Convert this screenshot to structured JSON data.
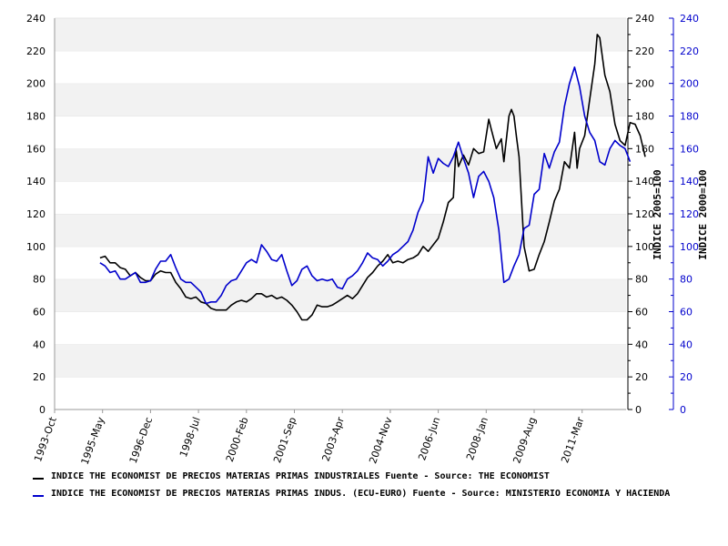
{
  "chart_data": {
    "type": "line",
    "x_labels": [
      "1993-Oct",
      "1995-May",
      "1996-Dec",
      "1998-Jul",
      "2000-Feb",
      "2001-Sep",
      "2003-Apr",
      "2004-Nov",
      "2006-Jun",
      "2008-Jan",
      "2009-Aug",
      "2011-Mar"
    ],
    "ylim": [
      0,
      240
    ],
    "y_ticks": [
      0,
      20,
      40,
      60,
      80,
      100,
      120,
      140,
      160,
      180,
      200,
      220,
      240
    ],
    "ylabel_right_1": "INDICE 2005=100",
    "ylabel_right_2": "INDICE 2000=100",
    "grid": "horizontal bands",
    "legend_position": "bottom",
    "series": [
      {
        "name": "INDICE THE ECONOMIST DE PRECIOS MATERIAS PRIMAS INDUSTRIALES  Fuente - Source: THE ECONOMIST",
        "color": "#000000",
        "points": [
          [
            "1995-Apr",
            93
          ],
          [
            "1995-Jun",
            94
          ],
          [
            "1995-Aug",
            90
          ],
          [
            "1995-Oct",
            90
          ],
          [
            "1995-Dec",
            87
          ],
          [
            "1996-Feb",
            86
          ],
          [
            "1996-Apr",
            82
          ],
          [
            "1996-Jun",
            84
          ],
          [
            "1996-Aug",
            81
          ],
          [
            "1996-Oct",
            79
          ],
          [
            "1996-Dec",
            79
          ],
          [
            "1997-Feb",
            83
          ],
          [
            "1997-Apr",
            85
          ],
          [
            "1997-Jun",
            84
          ],
          [
            "1997-Aug",
            84
          ],
          [
            "1997-Oct",
            78
          ],
          [
            "1997-Dec",
            74
          ],
          [
            "1998-Feb",
            69
          ],
          [
            "1998-Apr",
            68
          ],
          [
            "1998-Jun",
            69
          ],
          [
            "1998-Aug",
            66
          ],
          [
            "1998-Oct",
            65
          ],
          [
            "1998-Dec",
            62
          ],
          [
            "1999-Feb",
            61
          ],
          [
            "1999-Apr",
            61
          ],
          [
            "1999-Jun",
            61
          ],
          [
            "1999-Aug",
            64
          ],
          [
            "1999-Oct",
            66
          ],
          [
            "1999-Dec",
            67
          ],
          [
            "2000-Feb",
            66
          ],
          [
            "2000-Apr",
            68
          ],
          [
            "2000-Jun",
            71
          ],
          [
            "2000-Aug",
            71
          ],
          [
            "2000-Oct",
            69
          ],
          [
            "2000-Dec",
            70
          ],
          [
            "2001-Feb",
            68
          ],
          [
            "2001-Apr",
            69
          ],
          [
            "2001-Jun",
            67
          ],
          [
            "2001-Aug",
            64
          ],
          [
            "2001-Oct",
            60
          ],
          [
            "2001-Dec",
            55
          ],
          [
            "2002-Feb",
            55
          ],
          [
            "2002-Apr",
            58
          ],
          [
            "2002-Jun",
            64
          ],
          [
            "2002-Aug",
            63
          ],
          [
            "2002-Oct",
            63
          ],
          [
            "2002-Dec",
            64
          ],
          [
            "2003-Feb",
            66
          ],
          [
            "2003-Apr",
            68
          ],
          [
            "2003-Jun",
            70
          ],
          [
            "2003-Aug",
            68
          ],
          [
            "2003-Oct",
            71
          ],
          [
            "2003-Dec",
            76
          ],
          [
            "2004-Feb",
            81
          ],
          [
            "2004-Apr",
            84
          ],
          [
            "2004-Jun",
            88
          ],
          [
            "2004-Aug",
            91
          ],
          [
            "2004-Oct",
            95
          ],
          [
            "2004-Dec",
            90
          ],
          [
            "2005-Feb",
            91
          ],
          [
            "2005-Apr",
            90
          ],
          [
            "2005-Jun",
            92
          ],
          [
            "2005-Aug",
            93
          ],
          [
            "2005-Oct",
            95
          ],
          [
            "2005-Dec",
            100
          ],
          [
            "2006-Feb",
            97
          ],
          [
            "2006-Apr",
            101
          ],
          [
            "2006-Jun",
            105
          ],
          [
            "2006-Aug",
            115
          ],
          [
            "2006-Oct",
            127
          ],
          [
            "2006-Dec",
            130
          ],
          [
            "2007-Jan",
            160
          ],
          [
            "2007-Feb",
            149
          ],
          [
            "2007-Apr",
            156
          ],
          [
            "2007-Jun",
            150
          ],
          [
            "2007-Aug",
            160
          ],
          [
            "2007-Oct",
            157
          ],
          [
            "2007-Dec",
            158
          ],
          [
            "2008-Feb",
            178
          ],
          [
            "2008-Mar",
            172
          ],
          [
            "2008-May",
            160
          ],
          [
            "2008-Jul",
            166
          ],
          [
            "2008-Aug",
            152
          ],
          [
            "2008-Oct",
            180
          ],
          [
            "2008-Nov",
            184
          ],
          [
            "2008-Dec",
            180
          ],
          [
            "2009-Jan",
            167
          ],
          [
            "2009-Feb",
            155
          ],
          [
            "2009-Mar",
            128
          ],
          [
            "2009-Apr",
            100
          ],
          [
            "2009-Jun",
            85
          ],
          [
            "2009-Aug",
            86
          ],
          [
            "2009-Oct",
            95
          ],
          [
            "2009-Dec",
            103
          ],
          [
            "2010-Feb",
            115
          ],
          [
            "2010-Apr",
            128
          ],
          [
            "2010-Jun",
            135
          ],
          [
            "2010-Aug",
            152
          ],
          [
            "2010-Oct",
            148
          ],
          [
            "2010-Dec",
            170
          ],
          [
            "2011-Jan",
            148
          ],
          [
            "2011-Feb",
            160
          ],
          [
            "2011-Apr",
            168
          ],
          [
            "2011-Jun",
            190
          ],
          [
            "2011-Aug",
            212
          ],
          [
            "2011-Sep",
            230
          ],
          [
            "2011-Oct",
            228
          ],
          [
            "2011-Dec",
            205
          ],
          [
            "2012-Feb",
            195
          ],
          [
            "2012-Apr",
            175
          ],
          [
            "2012-Jun",
            165
          ],
          [
            "2012-Aug",
            162
          ],
          [
            "2012-Oct",
            176
          ],
          [
            "2012-Dec",
            175
          ],
          [
            "2013-Feb",
            168
          ],
          [
            "2013-Apr",
            155
          ]
        ]
      },
      {
        "name": "INDICE THE ECONOMIST DE PRECIOS MATERIAS PRIMAS INDUS. (ECU-EURO)  Fuente - Source: MINISTERIO ECONOMIA Y HACIENDA",
        "color": "#0000cc",
        "points": [
          [
            "1995-Apr",
            90
          ],
          [
            "1995-Jun",
            88
          ],
          [
            "1995-Aug",
            84
          ],
          [
            "1995-Oct",
            85
          ],
          [
            "1995-Dec",
            80
          ],
          [
            "1996-Feb",
            80
          ],
          [
            "1996-Apr",
            82
          ],
          [
            "1996-Jun",
            84
          ],
          [
            "1996-Aug",
            78
          ],
          [
            "1996-Oct",
            78
          ],
          [
            "1996-Dec",
            79
          ],
          [
            "1997-Feb",
            86
          ],
          [
            "1997-Apr",
            91
          ],
          [
            "1997-Jun",
            91
          ],
          [
            "1997-Aug",
            95
          ],
          [
            "1997-Oct",
            87
          ],
          [
            "1997-Dec",
            80
          ],
          [
            "1998-Feb",
            78
          ],
          [
            "1998-Apr",
            78
          ],
          [
            "1998-Jun",
            75
          ],
          [
            "1998-Aug",
            72
          ],
          [
            "1998-Oct",
            65
          ],
          [
            "1998-Dec",
            66
          ],
          [
            "1999-Feb",
            66
          ],
          [
            "1999-Apr",
            70
          ],
          [
            "1999-Jun",
            76
          ],
          [
            "1999-Aug",
            79
          ],
          [
            "1999-Oct",
            80
          ],
          [
            "1999-Dec",
            85
          ],
          [
            "2000-Feb",
            90
          ],
          [
            "2000-Apr",
            92
          ],
          [
            "2000-Jun",
            90
          ],
          [
            "2000-Aug",
            101
          ],
          [
            "2000-Oct",
            97
          ],
          [
            "2000-Dec",
            92
          ],
          [
            "2001-Feb",
            91
          ],
          [
            "2001-Apr",
            95
          ],
          [
            "2001-Jun",
            85
          ],
          [
            "2001-Aug",
            76
          ],
          [
            "2001-Oct",
            79
          ],
          [
            "2001-Dec",
            86
          ],
          [
            "2002-Feb",
            88
          ],
          [
            "2002-Apr",
            82
          ],
          [
            "2002-Jun",
            79
          ],
          [
            "2002-Aug",
            80
          ],
          [
            "2002-Oct",
            79
          ],
          [
            "2002-Dec",
            80
          ],
          [
            "2003-Feb",
            75
          ],
          [
            "2003-Apr",
            74
          ],
          [
            "2003-Jun",
            80
          ],
          [
            "2003-Aug",
            82
          ],
          [
            "2003-Oct",
            85
          ],
          [
            "2003-Dec",
            90
          ],
          [
            "2004-Feb",
            96
          ],
          [
            "2004-Apr",
            93
          ],
          [
            "2004-Jun",
            92
          ],
          [
            "2004-Aug",
            88
          ],
          [
            "2004-Oct",
            91
          ],
          [
            "2004-Dec",
            95
          ],
          [
            "2005-Feb",
            97
          ],
          [
            "2005-Apr",
            100
          ],
          [
            "2005-Jun",
            103
          ],
          [
            "2005-Aug",
            110
          ],
          [
            "2005-Oct",
            121
          ],
          [
            "2005-Dec",
            128
          ],
          [
            "2006-Feb",
            155
          ],
          [
            "2006-Apr",
            145
          ],
          [
            "2006-Jun",
            154
          ],
          [
            "2006-Aug",
            151
          ],
          [
            "2006-Oct",
            149
          ],
          [
            "2006-Dec",
            155
          ],
          [
            "2007-Feb",
            164
          ],
          [
            "2007-Apr",
            154
          ],
          [
            "2007-Jun",
            145
          ],
          [
            "2007-Aug",
            130
          ],
          [
            "2007-Oct",
            143
          ],
          [
            "2007-Dec",
            146
          ],
          [
            "2008-Feb",
            140
          ],
          [
            "2008-Apr",
            130
          ],
          [
            "2008-Jun",
            110
          ],
          [
            "2008-Aug",
            78
          ],
          [
            "2008-Oct",
            80
          ],
          [
            "2008-Dec",
            88
          ],
          [
            "2009-Feb",
            95
          ],
          [
            "2009-Apr",
            111
          ],
          [
            "2009-Jun",
            113
          ],
          [
            "2009-Aug",
            132
          ],
          [
            "2009-Oct",
            135
          ],
          [
            "2009-Dec",
            157
          ],
          [
            "2010-Feb",
            148
          ],
          [
            "2010-Apr",
            158
          ],
          [
            "2010-Jun",
            164
          ],
          [
            "2010-Aug",
            186
          ],
          [
            "2010-Oct",
            200
          ],
          [
            "2010-Dec",
            210
          ],
          [
            "2011-Feb",
            198
          ],
          [
            "2011-Apr",
            180
          ],
          [
            "2011-Jun",
            170
          ],
          [
            "2011-Aug",
            165
          ],
          [
            "2011-Oct",
            152
          ],
          [
            "2011-Dec",
            150
          ],
          [
            "2012-Feb",
            160
          ],
          [
            "2012-Apr",
            165
          ],
          [
            "2012-Jun",
            162
          ],
          [
            "2012-Aug",
            160
          ],
          [
            "2012-Oct",
            152
          ]
        ]
      }
    ]
  }
}
